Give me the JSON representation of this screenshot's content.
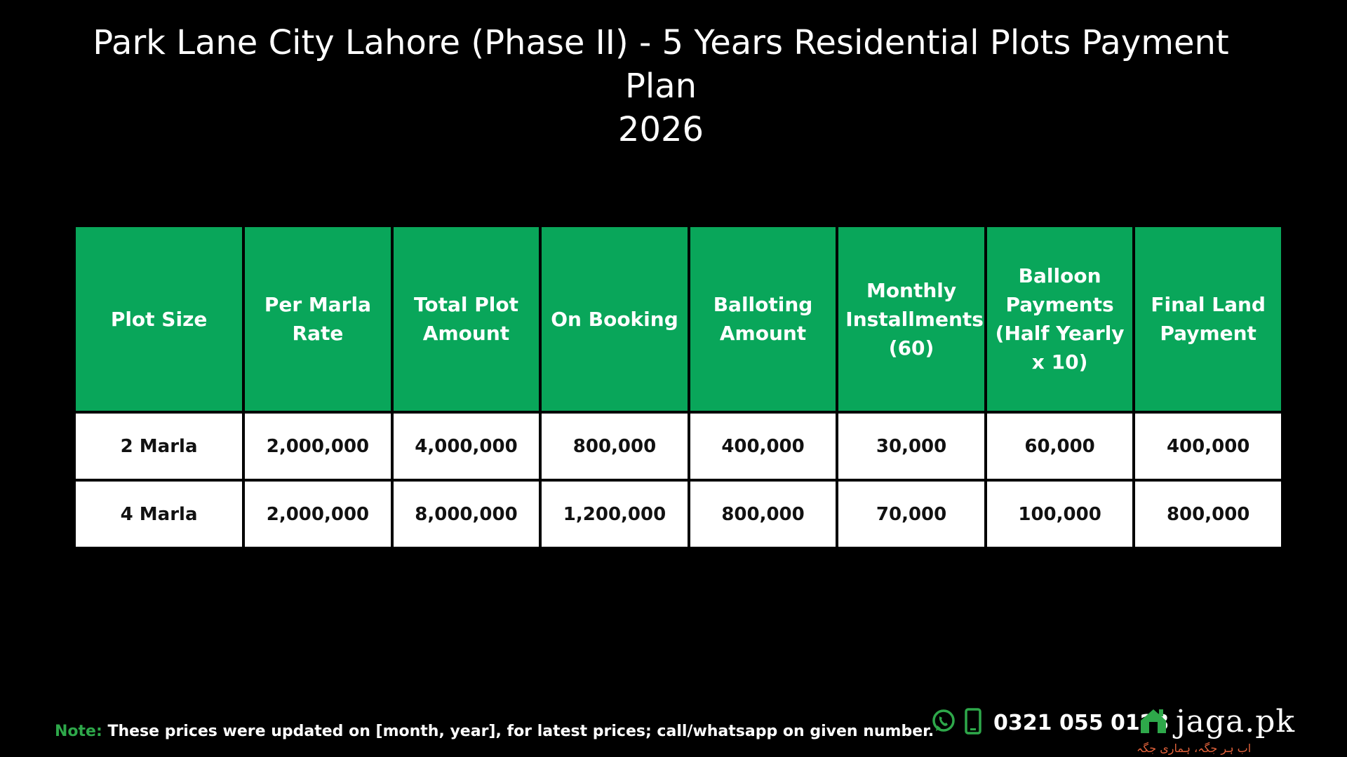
{
  "title": {
    "line1": "Park Lane City Lahore (Phase II) - 5 Years Residential Plots Payment Plan",
    "line2": "2026"
  },
  "table": {
    "headers": [
      "Plot Size",
      "Per Marla Rate",
      "Total Plot Amount",
      "On Booking",
      "Balloting Amount",
      "Monthly Installments (60)",
      "Balloon Payments (Half Yearly x 10)",
      "Final Land Payment"
    ],
    "rows": [
      [
        "2 Marla",
        "2,000,000",
        "4,000,000",
        "800,000",
        "400,000",
        "30,000",
        "60,000",
        "400,000"
      ],
      [
        "4 Marla",
        "2,000,000",
        "8,000,000",
        "1,200,000",
        "800,000",
        "70,000",
        "100,000",
        "800,000"
      ]
    ]
  },
  "note": {
    "label": "Note:",
    "text": "These prices were updated on [month, year], for latest prices; call/whatsapp on given number."
  },
  "contact": {
    "icons": [
      "whatsapp-icon",
      "mobile-phone-icon"
    ],
    "phone": "0321 055 0123"
  },
  "brand": {
    "icon": "house-logo-icon",
    "name": "jaga.pk",
    "tagline": "اب ہر جگہ، ہماری جگہ"
  },
  "colors": {
    "background": "#000000",
    "header_green": "#09a65a",
    "note_green": "#2ea84a",
    "tagline_orange": "#e0613a"
  }
}
